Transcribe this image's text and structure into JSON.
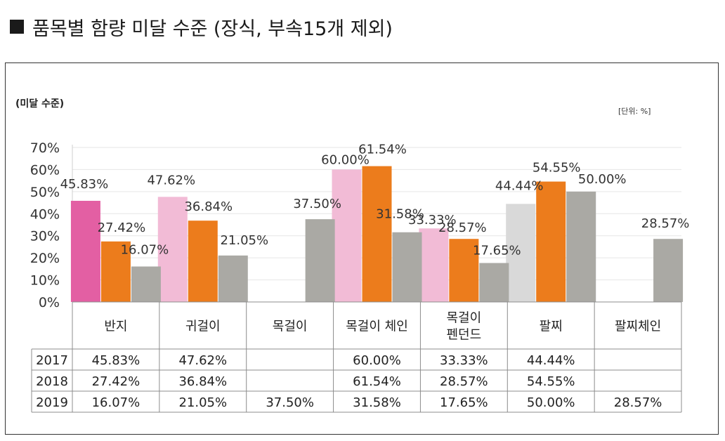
{
  "page": {
    "heading": "품목별 함량 미달 수준 (장식, 부속15개 제외)",
    "unit": "[단위: %]"
  },
  "chart_data": {
    "type": "bar",
    "ylabel": "(미달 수준)",
    "ylim": [
      0,
      70
    ],
    "yticks": [
      "0%",
      "10%",
      "20%",
      "30%",
      "40%",
      "50%",
      "60%",
      "70%"
    ],
    "grid": true,
    "categories": [
      [
        "반지"
      ],
      [
        "귀걸이"
      ],
      [
        "목걸이"
      ],
      [
        "목걸이 체인"
      ],
      [
        "목걸이",
        "펜던드"
      ],
      [
        "팔찌"
      ],
      [
        "팔찌체인"
      ]
    ],
    "series": [
      {
        "name": "2017",
        "values": [
          45.83,
          47.62,
          null,
          60.0,
          33.33,
          44.44,
          null
        ],
        "labels": [
          "45.83%",
          "47.62%",
          "",
          "60.00%",
          "33.33%",
          "44.44%",
          ""
        ]
      },
      {
        "name": "2018",
        "values": [
          27.42,
          36.84,
          null,
          61.54,
          28.57,
          54.55,
          null
        ],
        "labels": [
          "27.42%",
          "36.84%",
          "",
          "61.54%",
          "28.57%",
          "54.55%",
          ""
        ]
      },
      {
        "name": "2019",
        "values": [
          16.07,
          21.05,
          37.5,
          31.58,
          17.65,
          50.0,
          28.57
        ],
        "labels": [
          "16.07%",
          "21.05%",
          "37.50%",
          "31.58%",
          "17.65%",
          "50.00%",
          "28.57%"
        ]
      }
    ],
    "colors": {
      "s2017": [
        "#e35fa3",
        "#f2bbd6",
        "#f2bbd6",
        "#f2bbd6",
        "#f2bbd6",
        "#d9d9d9",
        "#d9d9d9"
      ],
      "s2018": "#ec7c1c",
      "s2019": "#aaa9a4"
    }
  }
}
